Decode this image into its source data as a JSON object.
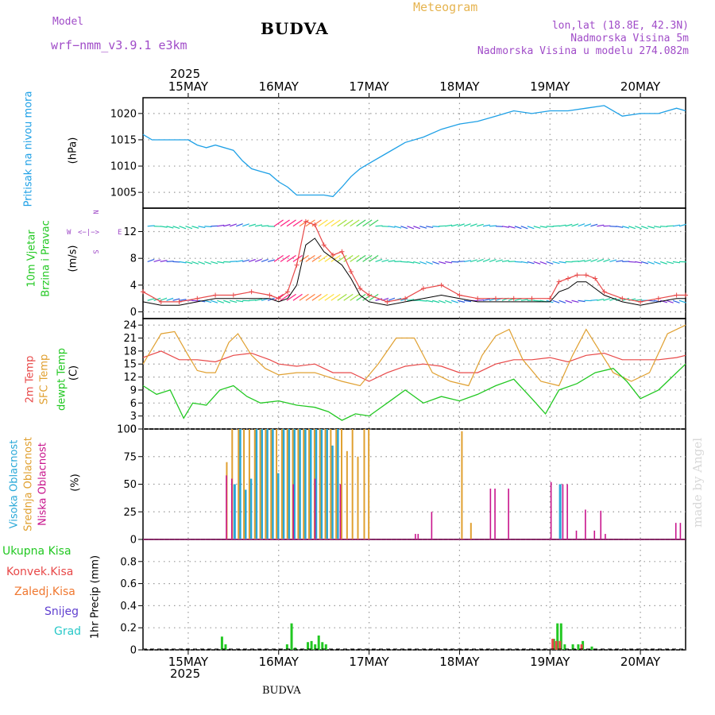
{
  "header": {
    "model_label": "Model",
    "model_name": "wrf−nmm_v3.9.1 e3km",
    "title": "BUDVA",
    "meteogram": "Meteogram",
    "lonlat": "lon,lat (18.8E, 42.3N)",
    "altitude": "Nadmorska Visina 5m",
    "model_altitude": "Nadmorska Visina u modelu 274.082m",
    "year_top": "2025",
    "year_bottom": "2025",
    "footer_title": "BUDVA",
    "credit": "made by Angel"
  },
  "time_axis": {
    "tick_labels": [
      "15MAY",
      "16MAY",
      "17MAY",
      "18MAY",
      "19MAY",
      "20MAY"
    ],
    "range_days": [
      -0.5,
      5.5
    ]
  },
  "panel_labels": {
    "pressure_name": "Pritisak na nivou mora",
    "pressure_unit": "(hPa)",
    "wind_name1": "10m Vjetar",
    "wind_name2": "Brzina i Pravac",
    "wind_unit": "(m/s)",
    "compass_n": "N",
    "compass_w": "W",
    "compass_e": "E",
    "compass_s": "S",
    "temp_name1": "2m Temp",
    "temp_name2": "SFC Temp",
    "temp_name3": "dewpt Temp",
    "temp_unit": "(C)",
    "cloud_high": "Visoka Oblacnost",
    "cloud_mid": "Srednja Oblacnost",
    "cloud_low": "Niska Oblacnost",
    "cloud_unit": "(%)",
    "precip_total": "Ukupna Kisa",
    "precip_conv": "Konvek.Kisa",
    "precip_frz": "Zaledj.Kisa",
    "precip_snow": "Snijeg",
    "precip_grad": "Grad",
    "precip_unit": "1hr Precip (mm)"
  },
  "colors": {
    "pressure": "#1ea0e6",
    "temp2m": "#e84848",
    "sfc": "#e0a030",
    "dewpt": "#22c822",
    "cloud_high": "#28a8d8",
    "cloud_mid": "#e0a030",
    "cloud_low": "#c8148c",
    "precip_total": "#22c822",
    "precip_conv": "#e84848",
    "precip_frz": "#f07830",
    "precip_snow": "#6040d0",
    "precip_grad": "#28c8c8",
    "gust": "#e84848",
    "wind_speed": "#000000",
    "purple_text": "#a04cc8"
  },
  "chart_data": [
    {
      "type": "line",
      "title": "Pritisak na nivou mora",
      "ylabel": "hPa",
      "ylim": [
        1002,
        1023
      ],
      "yticks": [
        1005,
        1010,
        1015,
        1020
      ],
      "x_days": [
        -0.5,
        -0.4,
        -0.2,
        0.0,
        0.1,
        0.2,
        0.3,
        0.5,
        0.6,
        0.7,
        0.8,
        0.9,
        1.0,
        1.1,
        1.2,
        1.3,
        1.4,
        1.5,
        1.6,
        1.7,
        1.8,
        1.9,
        2.0,
        2.2,
        2.4,
        2.6,
        2.8,
        3.0,
        3.2,
        3.4,
        3.6,
        3.8,
        4.0,
        4.2,
        4.4,
        4.6,
        4.8,
        5.0,
        5.2,
        5.4,
        5.5
      ],
      "values": [
        1016,
        1015,
        1015,
        1015,
        1014,
        1013.5,
        1014,
        1013,
        1011,
        1009.5,
        1009,
        1008.5,
        1007,
        1006,
        1004.5,
        1004.5,
        1004.5,
        1004.5,
        1004.2,
        1006,
        1008,
        1009.5,
        1010.5,
        1012.5,
        1014.5,
        1015.5,
        1017,
        1018,
        1018.5,
        1019.5,
        1020.5,
        1020,
        1020.5,
        1020.5,
        1021,
        1021.5,
        1019.5,
        1020,
        1020,
        1021,
        1020.5
      ]
    },
    {
      "type": "line",
      "title": "10m Vjetar Brzina i Pravac",
      "ylabel": "m/s",
      "ylim": [
        -1,
        15.5
      ],
      "yticks": [
        0,
        4,
        8,
        12
      ],
      "series": [
        {
          "name": "gust",
          "x_days": [
            -0.5,
            -0.3,
            -0.1,
            0.1,
            0.3,
            0.5,
            0.7,
            0.9,
            1.0,
            1.1,
            1.2,
            1.3,
            1.4,
            1.5,
            1.6,
            1.7,
            1.8,
            1.9,
            2.0,
            2.2,
            2.4,
            2.6,
            2.8,
            3.0,
            3.2,
            3.4,
            3.6,
            3.8,
            4.0,
            4.1,
            4.2,
            4.3,
            4.4,
            4.5,
            4.6,
            4.8,
            5.0,
            5.2,
            5.4,
            5.5
          ],
          "values": [
            3,
            1.5,
            1.5,
            2,
            2.5,
            2.5,
            3,
            2.5,
            2,
            3,
            7,
            13.5,
            13,
            10,
            8.5,
            9,
            6,
            3.5,
            2.5,
            1.5,
            2,
            3.5,
            4,
            2.5,
            2,
            2,
            2,
            2,
            2,
            4.5,
            5,
            5.5,
            5.5,
            5,
            3,
            2,
            1.5,
            2,
            2.5,
            2.5
          ]
        },
        {
          "name": "speed",
          "x_days": [
            -0.5,
            -0.3,
            -0.1,
            0.1,
            0.3,
            0.5,
            0.7,
            0.9,
            1.0,
            1.1,
            1.2,
            1.3,
            1.4,
            1.5,
            1.6,
            1.7,
            1.8,
            1.9,
            2.0,
            2.2,
            2.4,
            2.6,
            2.8,
            3.0,
            3.2,
            3.4,
            3.6,
            3.8,
            4.0,
            4.1,
            4.2,
            4.3,
            4.4,
            4.5,
            4.6,
            4.8,
            5.0,
            5.2,
            5.4,
            5.5
          ],
          "values": [
            1.5,
            1,
            1,
            1.5,
            2,
            2,
            2,
            2,
            1.5,
            2,
            4,
            10,
            11,
            9,
            8,
            7,
            5,
            2.5,
            1.5,
            1,
            1.5,
            2,
            2.5,
            2,
            1.5,
            1.5,
            1.5,
            1.5,
            1.5,
            3,
            3.5,
            4.5,
            4.5,
            3.5,
            2.5,
            1.5,
            1,
            1.5,
            2,
            2
          ]
        }
      ]
    },
    {
      "type": "line",
      "title": "Temperature",
      "ylabel": "C",
      "ylim": [
        0,
        25.5
      ],
      "yticks": [
        0,
        3,
        6,
        9,
        12,
        15,
        18,
        21,
        24
      ],
      "series": [
        {
          "name": "2m Temp",
          "x_days": [
            -0.5,
            -0.3,
            -0.1,
            0.1,
            0.3,
            0.5,
            0.7,
            0.9,
            1.0,
            1.2,
            1.4,
            1.6,
            1.8,
            2.0,
            2.2,
            2.4,
            2.6,
            2.8,
            3.0,
            3.2,
            3.4,
            3.6,
            3.8,
            4.0,
            4.2,
            4.4,
            4.6,
            4.8,
            5.0,
            5.2,
            5.4,
            5.5
          ],
          "values": [
            16.5,
            18,
            16,
            16,
            15.5,
            17,
            17.5,
            16,
            15,
            14.5,
            15,
            13,
            13,
            11,
            13,
            14.5,
            15,
            14.5,
            13,
            13,
            15,
            16,
            16,
            16.5,
            15.5,
            17,
            17.5,
            16,
            16,
            16,
            16.5,
            17
          ]
        },
        {
          "name": "SFC Temp",
          "x_days": [
            -0.5,
            -0.3,
            -0.15,
            0.0,
            0.1,
            0.2,
            0.3,
            0.45,
            0.55,
            0.7,
            0.85,
            1.0,
            1.2,
            1.4,
            1.55,
            1.7,
            1.9,
            2.1,
            2.3,
            2.5,
            2.7,
            2.9,
            3.1,
            3.25,
            3.4,
            3.55,
            3.7,
            3.9,
            4.1,
            4.25,
            4.4,
            4.55,
            4.7,
            4.9,
            5.1,
            5.3,
            5.5
          ],
          "values": [
            15,
            22,
            22.5,
            17,
            13.5,
            13,
            13,
            20,
            22,
            17,
            14,
            12.5,
            13,
            13,
            12,
            11,
            10,
            15,
            21,
            21,
            13,
            11,
            10,
            17,
            21.5,
            23,
            16,
            11,
            10,
            17,
            23,
            18,
            13,
            11,
            13,
            22,
            24
          ]
        },
        {
          "name": "dewpt Temp",
          "x_days": [
            -0.5,
            -0.35,
            -0.2,
            -0.05,
            0.05,
            0.2,
            0.35,
            0.5,
            0.65,
            0.8,
            1.0,
            1.2,
            1.4,
            1.55,
            1.7,
            1.85,
            2.0,
            2.2,
            2.4,
            2.6,
            2.8,
            3.0,
            3.2,
            3.4,
            3.6,
            3.8,
            3.95,
            4.1,
            4.3,
            4.5,
            4.7,
            4.85,
            5.0,
            5.2,
            5.4,
            5.5
          ],
          "values": [
            10,
            8,
            9,
            2.5,
            6,
            5.5,
            9,
            10,
            7.5,
            6,
            6.5,
            5.5,
            5,
            4,
            2,
            3.5,
            3,
            6,
            9,
            6,
            7.5,
            6.5,
            8,
            10,
            11.5,
            7,
            3.5,
            9,
            10.5,
            13,
            14,
            11,
            7,
            9,
            13,
            15
          ]
        }
      ]
    },
    {
      "type": "bar",
      "title": "Oblacnost",
      "ylabel": "%",
      "ylim": [
        0,
        100
      ],
      "yticks": [
        0,
        25,
        50,
        75,
        100
      ],
      "series": [
        {
          "name": "Visoka",
          "x_days": [
            0.5,
            0.56,
            0.62,
            0.68,
            0.74,
            0.8,
            0.86,
            0.92,
            0.98,
            1.04,
            1.1,
            1.16,
            1.22,
            1.28,
            1.34,
            1.4,
            1.46,
            1.52,
            1.58,
            1.64,
            4.1
          ],
          "values": [
            50,
            100,
            45,
            55,
            100,
            100,
            100,
            100,
            60,
            100,
            100,
            100,
            100,
            100,
            100,
            100,
            100,
            100,
            85,
            100,
            50
          ]
        },
        {
          "name": "Srednja",
          "x_days": [
            0.4,
            0.46,
            0.53,
            0.59,
            0.65,
            0.71,
            0.77,
            0.83,
            0.89,
            0.95,
            1.01,
            1.07,
            1.13,
            1.19,
            1.25,
            1.31,
            1.37,
            1.43,
            1.49,
            1.55,
            1.61,
            1.67,
            1.73,
            1.79,
            1.85,
            1.92,
            1.97,
            3.0,
            3.1
          ],
          "values": [
            70,
            100,
            100,
            100,
            100,
            100,
            100,
            100,
            100,
            100,
            100,
            100,
            100,
            100,
            100,
            100,
            100,
            100,
            100,
            100,
            100,
            100,
            80,
            100,
            75,
            100,
            100,
            98,
            15
          ]
        },
        {
          "name": "Niska",
          "x_days": [
            0.38,
            0.44,
            1.12,
            1.36,
            1.64,
            2.47,
            2.5,
            2.65,
            3.3,
            3.35,
            3.5,
            3.97,
            4.1,
            4.15,
            4.25,
            4.35,
            4.45,
            4.52,
            4.57,
            5.35,
            5.4
          ],
          "values": [
            58,
            55,
            50,
            55,
            50,
            5,
            5,
            25,
            46,
            46,
            46,
            52,
            50,
            50,
            8,
            27,
            8,
            26,
            5,
            15,
            15
          ]
        }
      ]
    },
    {
      "type": "bar",
      "title": "1hr Precip",
      "ylabel": "mm",
      "ylim": [
        0,
        1
      ],
      "yticks": [
        0,
        0.2,
        0.4,
        0.6,
        0.8
      ],
      "series": [
        {
          "name": "Ukupna Kisa",
          "x_days": [
            0.36,
            0.4,
            1.08,
            1.13,
            1.17,
            1.31,
            1.35,
            1.39,
            1.43,
            1.47,
            1.51,
            4.03,
            4.07,
            4.11,
            4.15,
            4.24,
            4.3,
            4.35,
            4.45
          ],
          "values": [
            0.12,
            0.05,
            0.05,
            0.24,
            0.02,
            0.07,
            0.08,
            0.05,
            0.13,
            0.07,
            0.05,
            0.1,
            0.24,
            0.24,
            0.05,
            0.05,
            0.05,
            0.08,
            0.03
          ]
        },
        {
          "name": "Konvek.Kisa",
          "x_days": [
            4.03,
            4.07,
            4.11,
            4.35
          ],
          "values": [
            0.1,
            0.08,
            0.08,
            0.05
          ]
        }
      ]
    }
  ]
}
